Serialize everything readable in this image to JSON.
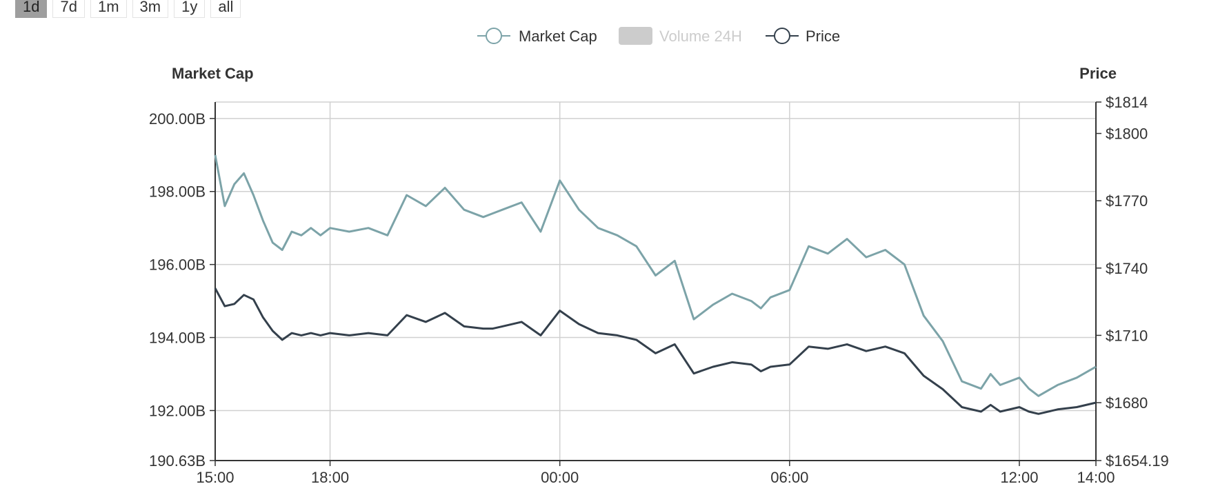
{
  "range_buttons": [
    {
      "label": "1d",
      "active": true
    },
    {
      "label": "7d",
      "active": false
    },
    {
      "label": "1m",
      "active": false
    },
    {
      "label": "3m",
      "active": false
    },
    {
      "label": "1y",
      "active": false
    },
    {
      "label": "all",
      "active": false
    }
  ],
  "colors": {
    "market_cap": "#7ca3a8",
    "price": "#34404c",
    "volume": "#cccccc",
    "grid": "#d0d0d0",
    "axis": "#333333"
  },
  "chart_data": {
    "type": "line",
    "grid": true,
    "legend_position": "top-center",
    "legend": [
      {
        "name": "Market Cap",
        "enabled": true
      },
      {
        "name": "Volume 24H",
        "enabled": false
      },
      {
        "name": "Price",
        "enabled": true
      }
    ],
    "left_axis_title": "Market Cap",
    "right_axis_title": "Price",
    "x_ticks": [
      "15:00",
      "18:00",
      "00:00",
      "06:00",
      "12:00",
      "14:00"
    ],
    "x_tick_hours": [
      0,
      3,
      9,
      15,
      21,
      23
    ],
    "x_range_hours": [
      0,
      23
    ],
    "left_ticks": [
      {
        "value": 190.63,
        "label": "190.63B"
      },
      {
        "value": 192,
        "label": "192.00B"
      },
      {
        "value": 194,
        "label": "194.00B"
      },
      {
        "value": 196,
        "label": "196.00B"
      },
      {
        "value": 198,
        "label": "198.00B"
      },
      {
        "value": 200,
        "label": "200.00B"
      }
    ],
    "left_ylim": [
      190.63,
      200.45
    ],
    "right_ticks": [
      {
        "value": 1654.19,
        "label": "$1654.19"
      },
      {
        "value": 1680,
        "label": "$1680"
      },
      {
        "value": 1710,
        "label": "$1710"
      },
      {
        "value": 1740,
        "label": "$1740"
      },
      {
        "value": 1770,
        "label": "$1770"
      },
      {
        "value": 1800,
        "label": "$1800"
      },
      {
        "value": 1814,
        "label": "$1814"
      }
    ],
    "right_ylim": [
      1654.19,
      1814
    ],
    "series": [
      {
        "name": "Market Cap",
        "axis": "left",
        "x_hours": [
          0,
          0.25,
          0.5,
          0.75,
          1,
          1.25,
          1.5,
          1.75,
          2,
          2.25,
          2.5,
          2.75,
          3,
          3.5,
          4,
          4.5,
          5,
          5.5,
          6,
          6.5,
          7,
          7.25,
          7.5,
          8,
          8.5,
          9,
          9.5,
          10,
          10.5,
          11,
          11.5,
          12,
          12.5,
          13,
          13.5,
          14,
          14.25,
          14.5,
          15,
          15.5,
          16,
          16.5,
          17,
          17.5,
          18,
          18.5,
          19,
          19.5,
          20,
          20.25,
          20.5,
          21,
          21.25,
          21.5,
          22,
          22.5,
          23
        ],
        "values": [
          199.0,
          197.6,
          198.2,
          198.5,
          197.9,
          197.2,
          196.6,
          196.4,
          196.9,
          196.8,
          197.0,
          196.8,
          197.0,
          196.9,
          197.0,
          196.8,
          197.9,
          197.6,
          198.1,
          197.5,
          197.3,
          197.4,
          197.5,
          197.7,
          196.9,
          198.3,
          197.5,
          197.0,
          196.8,
          196.5,
          195.7,
          196.1,
          194.5,
          194.9,
          195.2,
          195.0,
          194.8,
          195.1,
          195.3,
          196.5,
          196.3,
          196.7,
          196.2,
          196.4,
          196.0,
          194.6,
          193.9,
          192.8,
          192.6,
          193.0,
          192.7,
          192.9,
          192.6,
          192.4,
          192.7,
          192.9,
          193.2
        ]
      },
      {
        "name": "Price",
        "axis": "right",
        "x_hours": [
          0,
          0.25,
          0.5,
          0.75,
          1,
          1.25,
          1.5,
          1.75,
          2,
          2.25,
          2.5,
          2.75,
          3,
          3.5,
          4,
          4.5,
          5,
          5.5,
          6,
          6.5,
          7,
          7.25,
          7.5,
          8,
          8.5,
          9,
          9.5,
          10,
          10.5,
          11,
          11.5,
          12,
          12.5,
          13,
          13.5,
          14,
          14.25,
          14.5,
          15,
          15.5,
          16,
          16.5,
          17,
          17.5,
          18,
          18.5,
          19,
          19.5,
          20,
          20.25,
          20.5,
          21,
          21.25,
          21.5,
          22,
          22.5,
          23
        ],
        "values": [
          1731,
          1723,
          1724,
          1728,
          1726,
          1718,
          1712,
          1708,
          1711,
          1710,
          1711,
          1710,
          1711,
          1710,
          1711,
          1710,
          1719,
          1716,
          1720,
          1714,
          1713,
          1713,
          1714,
          1716,
          1710,
          1721,
          1715,
          1711,
          1710,
          1708,
          1702,
          1706,
          1693,
          1696,
          1698,
          1697,
          1694,
          1696,
          1697,
          1705,
          1704,
          1706,
          1703,
          1705,
          1702,
          1692,
          1686,
          1678,
          1676,
          1679,
          1676,
          1678,
          1676,
          1675,
          1677,
          1678,
          1680
        ]
      }
    ]
  }
}
